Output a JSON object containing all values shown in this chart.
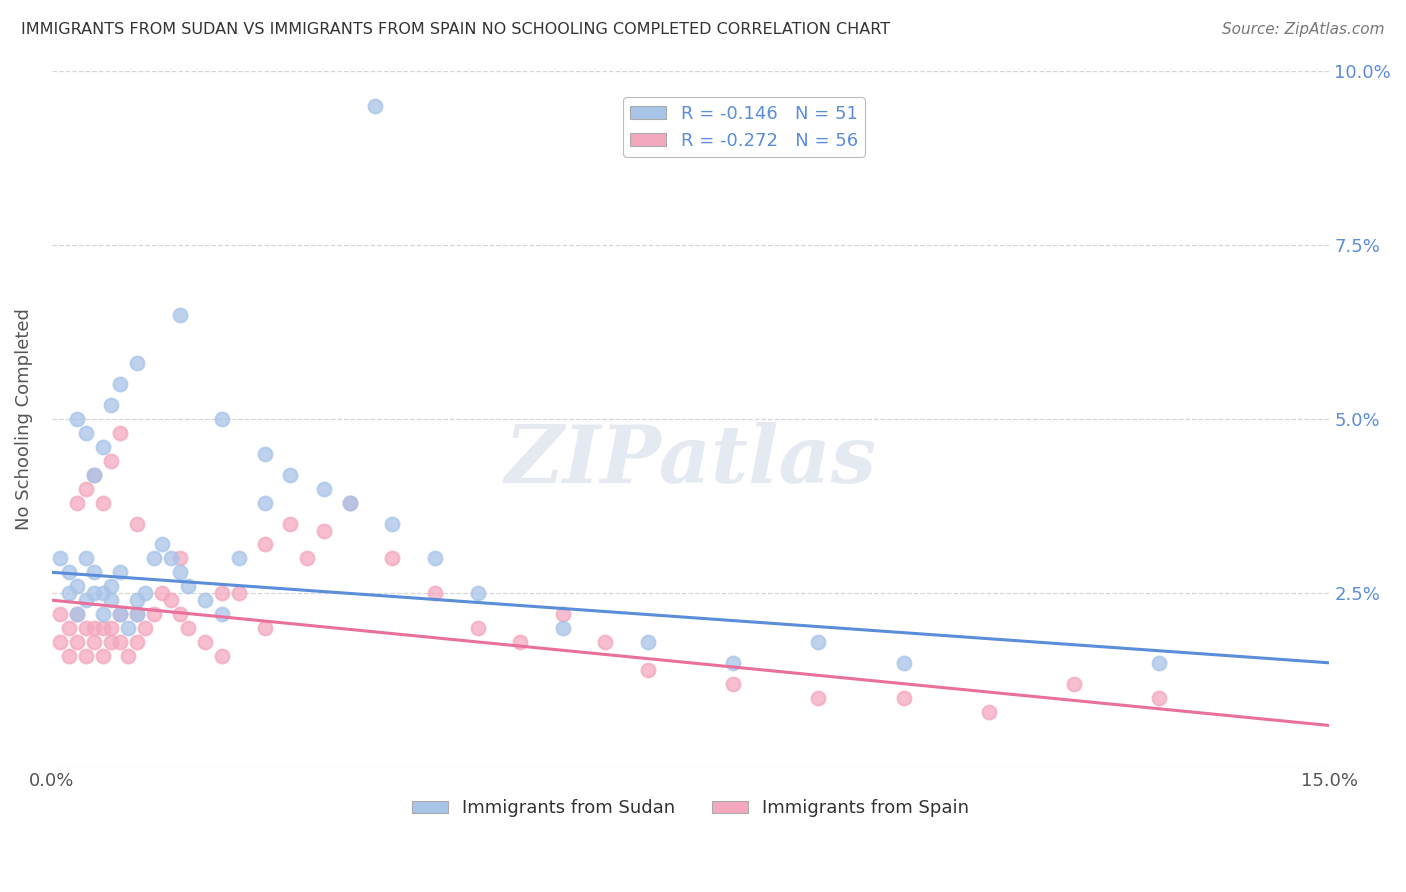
{
  "title": "IMMIGRANTS FROM SUDAN VS IMMIGRANTS FROM SPAIN NO SCHOOLING COMPLETED CORRELATION CHART",
  "source": "Source: ZipAtlas.com",
  "ylabel": "No Schooling Completed",
  "sudan_color": "#a8c4e8",
  "spain_color": "#f4a8be",
  "sudan_line_color": "#5b8dd9",
  "spain_line_color": "#e8709a",
  "sudan_R": -0.146,
  "sudan_N": 51,
  "spain_R": -0.272,
  "spain_N": 56,
  "xlim": [
    0.0,
    0.15
  ],
  "ylim": [
    0.0,
    0.1
  ],
  "sudan_line_start_y": 0.028,
  "sudan_line_end_y": 0.015,
  "spain_line_start_y": 0.024,
  "spain_line_end_y": 0.006,
  "watermark_text": "ZIPatlas",
  "sudan_points_x": [
    0.001,
    0.002,
    0.002,
    0.003,
    0.003,
    0.004,
    0.004,
    0.005,
    0.005,
    0.006,
    0.006,
    0.007,
    0.007,
    0.008,
    0.008,
    0.009,
    0.01,
    0.01,
    0.011,
    0.012,
    0.013,
    0.014,
    0.015,
    0.016,
    0.018,
    0.02,
    0.022,
    0.025,
    0.028,
    0.032,
    0.035,
    0.04,
    0.045,
    0.05,
    0.06,
    0.07,
    0.08,
    0.09,
    0.1,
    0.13,
    0.003,
    0.004,
    0.005,
    0.006,
    0.007,
    0.008,
    0.01,
    0.015,
    0.02,
    0.025,
    0.038
  ],
  "sudan_points_y": [
    0.03,
    0.028,
    0.025,
    0.026,
    0.022,
    0.03,
    0.024,
    0.028,
    0.025,
    0.025,
    0.022,
    0.024,
    0.026,
    0.022,
    0.028,
    0.02,
    0.024,
    0.022,
    0.025,
    0.03,
    0.032,
    0.03,
    0.028,
    0.026,
    0.024,
    0.022,
    0.03,
    0.038,
    0.042,
    0.04,
    0.038,
    0.035,
    0.03,
    0.025,
    0.02,
    0.018,
    0.015,
    0.018,
    0.015,
    0.015,
    0.05,
    0.048,
    0.042,
    0.046,
    0.052,
    0.055,
    0.058,
    0.065,
    0.05,
    0.045,
    0.095
  ],
  "spain_points_x": [
    0.001,
    0.001,
    0.002,
    0.002,
    0.003,
    0.003,
    0.004,
    0.004,
    0.005,
    0.005,
    0.006,
    0.006,
    0.007,
    0.007,
    0.008,
    0.008,
    0.009,
    0.01,
    0.01,
    0.011,
    0.012,
    0.013,
    0.014,
    0.015,
    0.016,
    0.018,
    0.02,
    0.022,
    0.025,
    0.028,
    0.03,
    0.032,
    0.035,
    0.04,
    0.045,
    0.05,
    0.055,
    0.06,
    0.065,
    0.07,
    0.003,
    0.004,
    0.005,
    0.006,
    0.007,
    0.008,
    0.01,
    0.015,
    0.02,
    0.025,
    0.08,
    0.09,
    0.1,
    0.11,
    0.12,
    0.13
  ],
  "spain_points_y": [
    0.022,
    0.018,
    0.02,
    0.016,
    0.022,
    0.018,
    0.02,
    0.016,
    0.02,
    0.018,
    0.02,
    0.016,
    0.018,
    0.02,
    0.022,
    0.018,
    0.016,
    0.018,
    0.022,
    0.02,
    0.022,
    0.025,
    0.024,
    0.022,
    0.02,
    0.018,
    0.016,
    0.025,
    0.032,
    0.035,
    0.03,
    0.034,
    0.038,
    0.03,
    0.025,
    0.02,
    0.018,
    0.022,
    0.018,
    0.014,
    0.038,
    0.04,
    0.042,
    0.038,
    0.044,
    0.048,
    0.035,
    0.03,
    0.025,
    0.02,
    0.012,
    0.01,
    0.01,
    0.008,
    0.012,
    0.01
  ]
}
